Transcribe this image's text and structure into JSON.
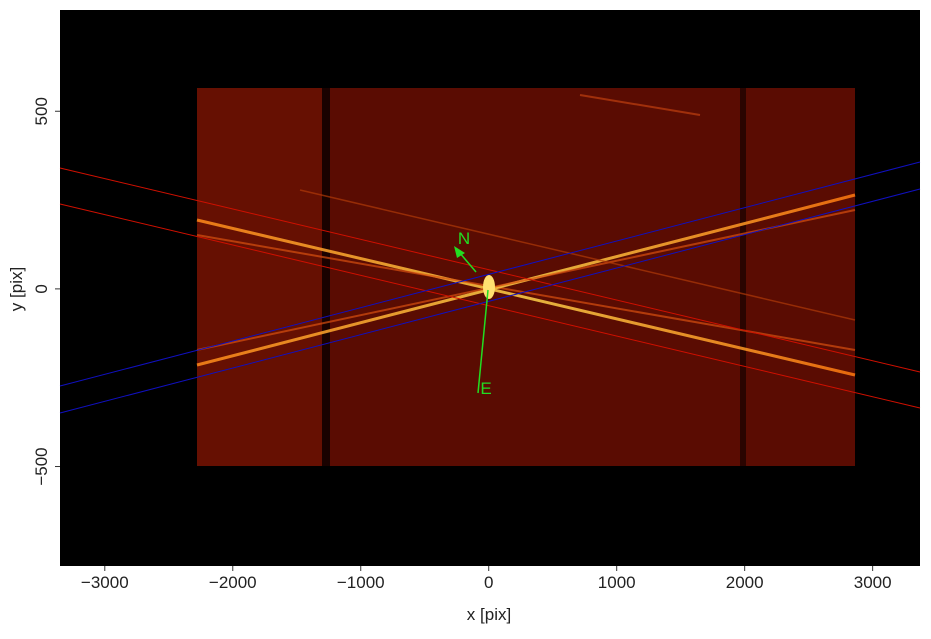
{
  "chart_data": {
    "type": "image",
    "xlabel": "x [pix]",
    "ylabel": "y [pix]",
    "xlim": [
      -3350,
      3370
    ],
    "ylim": [
      -780,
      785
    ],
    "xticks": [
      {
        "value": -3000,
        "label": "−3000"
      },
      {
        "value": -2000,
        "label": "−2000"
      },
      {
        "value": -1000,
        "label": "−1000"
      },
      0,
      1000,
      2000,
      3000
    ],
    "yticks": [
      {
        "value": -500,
        "label": "−500"
      },
      0,
      500
    ],
    "annotations": [
      "N",
      "E"
    ]
  }
}
